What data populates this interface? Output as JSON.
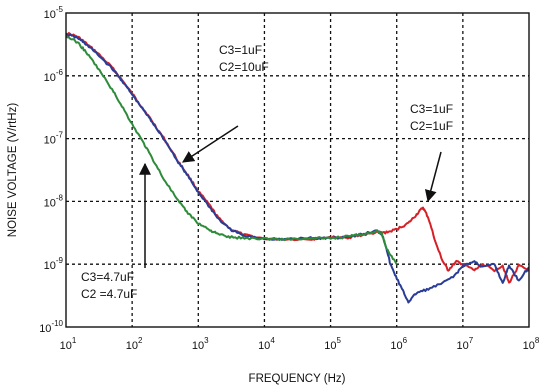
{
  "title_fragment": "",
  "chart_data": {
    "type": "line",
    "title": "",
    "xlabel": "FREQUENCY (Hz)",
    "ylabel": "NOISE VOLTAGE (V/rtHz)",
    "x_scale": "log",
    "y_scale": "log",
    "xlim": [
      10,
      100000000
    ],
    "ylim": [
      1e-10,
      1e-05
    ],
    "grid": true,
    "x_ticks": [
      {
        "base": "10",
        "exp": "1"
      },
      {
        "base": "10",
        "exp": "2"
      },
      {
        "base": "10",
        "exp": "3"
      },
      {
        "base": "10",
        "exp": "4"
      },
      {
        "base": "10",
        "exp": "5"
      },
      {
        "base": "10",
        "exp": "6"
      },
      {
        "base": "10",
        "exp": "7"
      },
      {
        "base": "10",
        "exp": "8"
      }
    ],
    "y_ticks": [
      {
        "base": "10",
        "exp": "-5"
      },
      {
        "base": "10",
        "exp": "-6"
      },
      {
        "base": "10",
        "exp": "-7"
      },
      {
        "base": "10",
        "exp": "-8"
      },
      {
        "base": "10",
        "exp": "-9"
      },
      {
        "base": "10",
        "exp": "-10"
      }
    ],
    "series": [
      {
        "color": "#d62027",
        "x": [
          10,
          15,
          20,
          30,
          50,
          70,
          100,
          150,
          200,
          300,
          500,
          700,
          1000,
          1500,
          2000,
          3000,
          5000,
          10000,
          20000,
          50000,
          70000,
          100000,
          150000,
          200000,
          300000,
          500000,
          700000,
          1000000,
          1500000,
          2000000,
          2500000,
          3000000,
          4000000,
          5000000,
          6000000,
          8000000,
          10000000,
          15000000,
          20000000,
          30000000,
          40000000,
          50000000,
          70000000,
          100000000
        ],
        "y": [
          4.8e-06,
          4.2e-06,
          3.3e-06,
          2.3e-06,
          1.35e-06,
          8.6e-07,
          5.2e-07,
          2.9e-07,
          1.9e-07,
          1.02e-07,
          4.3e-08,
          2.6e-08,
          1.45e-08,
          8.5e-09,
          5.5e-09,
          3.7e-09,
          2.9e-09,
          2.55e-09,
          2.5e-09,
          2.5e-09,
          2.6e-09,
          2.7e-09,
          2.6e-09,
          2.7e-09,
          2.9e-09,
          3.2e-09,
          3.2e-09,
          3.6e-09,
          4.5e-09,
          6.2e-09,
          8e-09,
          5.5e-09,
          2e-09,
          1.1e-09,
          8e-10,
          1.1e-09,
          1e-09,
          8e-10,
          1e-09,
          8e-10,
          9.5e-10,
          5e-10,
          9.5e-10,
          8e-10
        ]
      },
      {
        "color": "#2a3d96",
        "x": [
          10,
          15,
          20,
          30,
          50,
          70,
          100,
          150,
          200,
          300,
          500,
          700,
          1000,
          1500,
          2000,
          3000,
          5000,
          10000,
          20000,
          50000,
          70000,
          100000,
          200000,
          300000,
          500000,
          600000,
          700000,
          800000,
          1000000,
          1200000,
          1500000,
          2000000,
          3000000,
          5000000,
          8000000,
          10000000,
          15000000,
          20000000,
          30000000,
          40000000,
          50000000,
          70000000,
          100000000
        ],
        "y": [
          4.6e-06,
          4e-06,
          3.2e-06,
          2.2e-06,
          1.3e-06,
          8.4e-07,
          5e-07,
          2.8e-07,
          1.85e-07,
          1e-07,
          4.2e-08,
          2.5e-08,
          1.4e-08,
          8e-09,
          5.3e-09,
          3.6e-09,
          2.8e-09,
          2.55e-09,
          2.5e-09,
          2.6e-09,
          2.6e-09,
          2.6e-09,
          2.8e-09,
          3e-09,
          3.4e-09,
          3e-09,
          1.8e-09,
          1e-09,
          6e-10,
          4e-10,
          2.5e-10,
          3.5e-10,
          4e-10,
          5e-10,
          7e-10,
          9.5e-10,
          1.1e-09,
          9e-10,
          1e-09,
          5e-10,
          9.5e-10,
          5.5e-10,
          9e-10
        ]
      },
      {
        "color": "#2e8b3a",
        "x": [
          10,
          15,
          20,
          30,
          50,
          70,
          100,
          150,
          200,
          300,
          500,
          700,
          1000,
          1500,
          2000,
          3000,
          5000,
          10000,
          20000,
          50000,
          100000,
          200000,
          300000,
          500000,
          600000,
          700000,
          1000000
        ],
        "y": [
          4.3e-06,
          3.4e-06,
          2.4e-06,
          1.35e-06,
          6e-07,
          3.3e-07,
          1.7e-07,
          8.4e-08,
          4.9e-08,
          2.3e-08,
          1e-08,
          6.5e-09,
          4.5e-09,
          3.5e-09,
          3e-09,
          2.7e-09,
          2.6e-09,
          2.55e-09,
          2.5e-09,
          2.55e-09,
          2.6e-09,
          2.8e-09,
          3e-09,
          3.4e-09,
          3e-09,
          1.8e-09,
          1e-09
        ]
      }
    ],
    "annotations": [
      {
        "lines": [
          "C3=1uF",
          "C2=10uF"
        ]
      },
      {
        "lines": [
          "C3=1uF",
          "C2=1uF"
        ]
      },
      {
        "lines": [
          "C3=4.7uF",
          "C2 =4.7uF"
        ]
      }
    ]
  }
}
